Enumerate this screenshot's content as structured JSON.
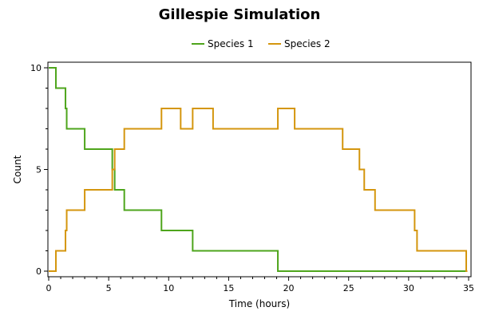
{
  "chart_data": {
    "type": "line",
    "step": true,
    "title": "Gillespie Simulation",
    "xlabel": "Time (hours)",
    "ylabel": "Count",
    "xlim": [
      0,
      35
    ],
    "ylim": [
      0,
      10
    ],
    "xticks": [
      0,
      5,
      10,
      15,
      20,
      25,
      30,
      35
    ],
    "yticks": [
      0,
      5,
      10
    ],
    "grid": false,
    "legend_position": "top-center",
    "series": [
      {
        "name": "Species 1",
        "color": "#4ea51c",
        "x": [
          0,
          0.6,
          1.4,
          1.5,
          3.0,
          5.3,
          5.5,
          6.3,
          9.4,
          12.0,
          19.1,
          34.9
        ],
        "y": [
          10,
          9,
          8,
          7,
          6,
          5,
          4,
          3,
          2,
          1,
          0,
          0
        ]
      },
      {
        "name": "Species 2",
        "color": "#d4960e",
        "x": [
          0,
          0.6,
          1.4,
          1.5,
          3.0,
          5.3,
          5.5,
          6.3,
          9.4,
          11.0,
          12.0,
          13.7,
          19.1,
          20.5,
          24.5,
          25.9,
          26.3,
          27.2,
          30.5,
          30.7,
          34.8,
          34.9
        ],
        "y": [
          0,
          1,
          2,
          3,
          4,
          5,
          6,
          7,
          8,
          7,
          8,
          7,
          8,
          7,
          6,
          5,
          4,
          3,
          2,
          1,
          0,
          0
        ]
      }
    ]
  }
}
